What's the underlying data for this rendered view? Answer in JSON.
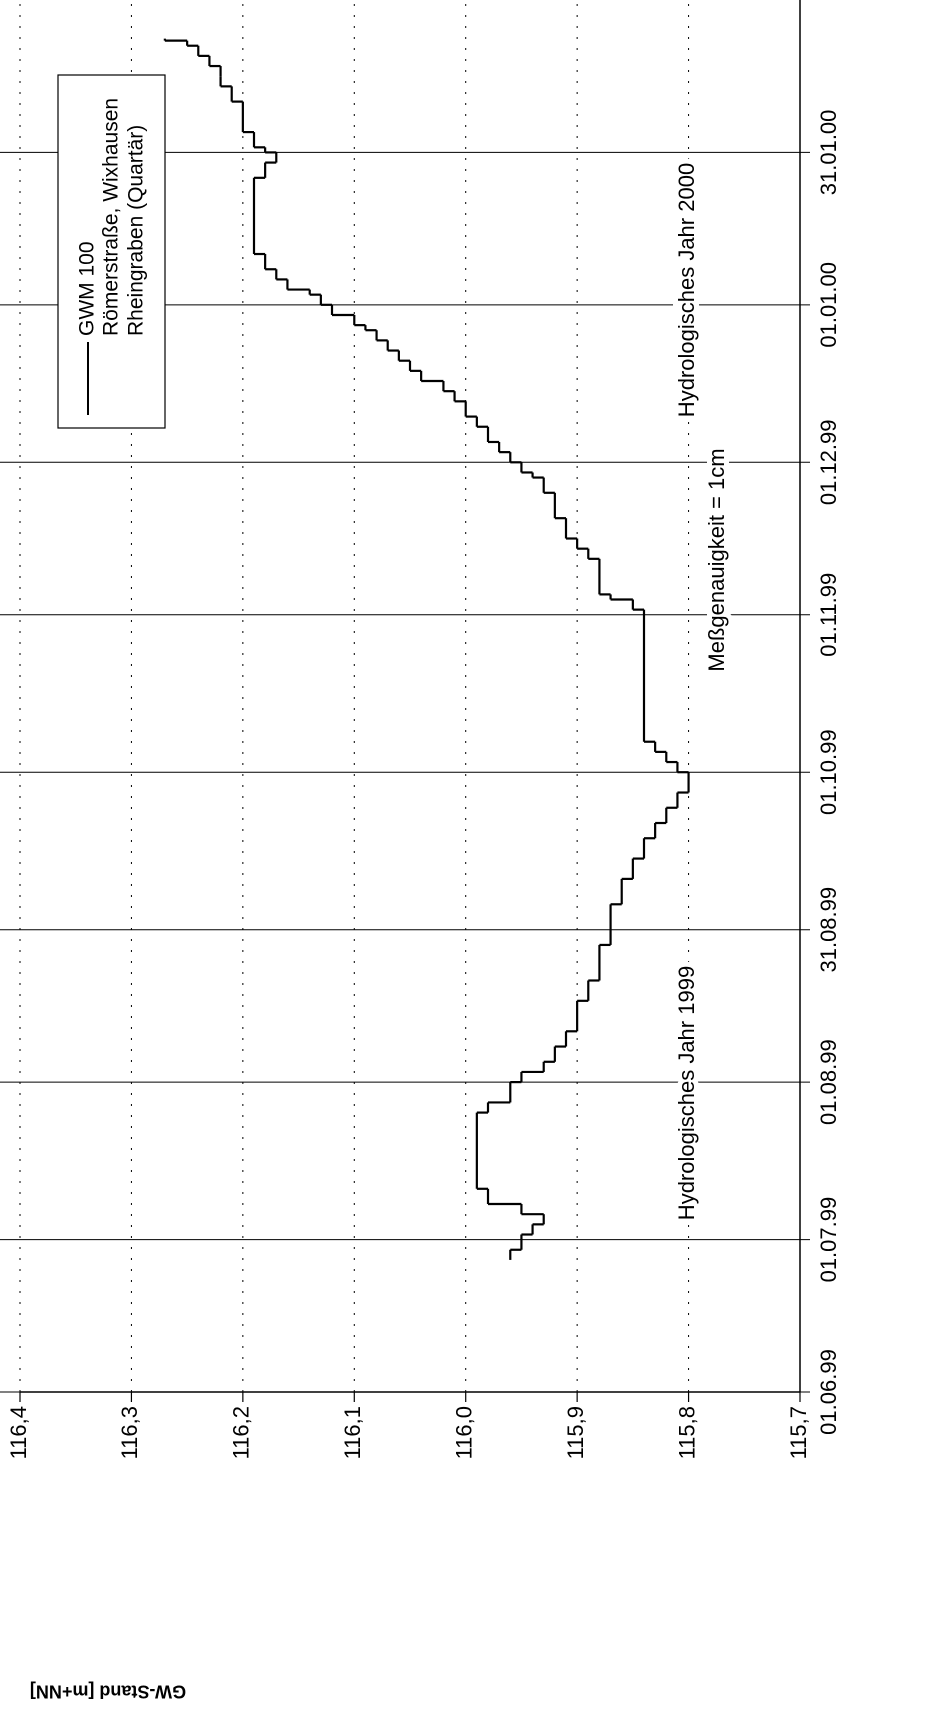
{
  "chart_data": {
    "type": "line",
    "drawstyle": "steps-post",
    "y_label": "GW-Stand [m+NN]",
    "xlim": [
      "1999-06-01",
      "2000-03-01"
    ],
    "xticks": [
      {
        "value": "1999-06-01",
        "label": "01.06.99"
      },
      {
        "value": "1999-07-01",
        "label": "01.07.99"
      },
      {
        "value": "1999-08-01",
        "label": "01.08.99"
      },
      {
        "value": "1999-08-31",
        "label": "31.08.99"
      },
      {
        "value": "1999-10-01",
        "label": "01.10.99"
      },
      {
        "value": "1999-11-01",
        "label": "01.11.99"
      },
      {
        "value": "1999-12-01",
        "label": "01.12.99"
      },
      {
        "value": "2000-01-01",
        "label": "01.01.00"
      },
      {
        "value": "2000-01-31",
        "label": "31.01.00"
      }
    ],
    "ylim": [
      115.7,
      116.4
    ],
    "yticks": [
      {
        "value": 116.4,
        "label": "116,4"
      },
      {
        "value": 116.3,
        "label": "116,3"
      },
      {
        "value": 116.2,
        "label": "116,2"
      },
      {
        "value": 116.1,
        "label": "116,1"
      },
      {
        "value": 116.0,
        "label": "116,0"
      },
      {
        "value": 115.9,
        "label": "115,9"
      },
      {
        "value": 115.8,
        "label": "115,8"
      },
      {
        "value": 115.7,
        "label": "115,7"
      }
    ],
    "x_grid": "solid",
    "y_grid": "dotted",
    "annotations": [
      "Hydrologisches Jahr 1999",
      "Meßgenauigkeit  = 1cm",
      "Hydrologisches Jahr 2000"
    ],
    "legend_notes": [
      "Römerstraße, Wixhausen",
      "Rheingraben (Quartär)"
    ],
    "series": [
      {
        "name": "GWM 100",
        "color": "#000000",
        "x": [
          "1999-06-27",
          "1999-06-29",
          "1999-07-02",
          "1999-07-04",
          "1999-07-06",
          "1999-07-08",
          "1999-07-11",
          "1999-07-26",
          "1999-07-28",
          "1999-08-01",
          "1999-08-03",
          "1999-08-05",
          "1999-08-08",
          "1999-08-11",
          "1999-08-17",
          "1999-08-21",
          "1999-08-28",
          "1999-09-05",
          "1999-09-10",
          "1999-09-14",
          "1999-09-18",
          "1999-09-21",
          "1999-09-24",
          "1999-09-27",
          "1999-10-01",
          "1999-10-03",
          "1999-10-05",
          "1999-10-07",
          "1999-11-02",
          "1999-11-04",
          "1999-11-05",
          "1999-11-12",
          "1999-11-14",
          "1999-11-16",
          "1999-11-20",
          "1999-11-25",
          "1999-11-28",
          "1999-11-29",
          "1999-12-01",
          "1999-12-03",
          "1999-12-05",
          "1999-12-08",
          "1999-12-10",
          "1999-12-13",
          "1999-12-15",
          "1999-12-17",
          "1999-12-19",
          "1999-12-21",
          "1999-12-23",
          "1999-12-25",
          "1999-12-27",
          "1999-12-28",
          "1999-12-30",
          "2000-01-01",
          "2000-01-03",
          "2000-01-04",
          "2000-01-06",
          "2000-01-08",
          "2000-01-11",
          "2000-01-26",
          "2000-01-29",
          "2000-01-31",
          "2000-02-01",
          "2000-02-04",
          "2000-02-10",
          "2000-02-13",
          "2000-02-15",
          "2000-02-17",
          "2000-02-19",
          "2000-02-21",
          "2000-02-22"
        ],
        "values": [
          115.96,
          115.95,
          115.94,
          115.93,
          115.95,
          115.98,
          115.99,
          115.98,
          115.96,
          115.95,
          115.93,
          115.92,
          115.91,
          115.9,
          115.89,
          115.88,
          115.87,
          115.86,
          115.85,
          115.84,
          115.83,
          115.82,
          115.81,
          115.8,
          115.81,
          115.82,
          115.83,
          115.84,
          115.85,
          115.87,
          115.88,
          115.89,
          115.9,
          115.91,
          115.92,
          115.93,
          115.94,
          115.95,
          115.96,
          115.97,
          115.98,
          115.99,
          116.0,
          116.01,
          116.02,
          116.04,
          116.05,
          116.06,
          116.07,
          116.08,
          116.09,
          116.1,
          116.12,
          116.13,
          116.14,
          116.16,
          116.17,
          116.18,
          116.19,
          116.18,
          116.17,
          116.18,
          116.19,
          116.2,
          116.21,
          116.22,
          116.22,
          116.23,
          116.24,
          116.25,
          116.27
        ]
      }
    ]
  }
}
